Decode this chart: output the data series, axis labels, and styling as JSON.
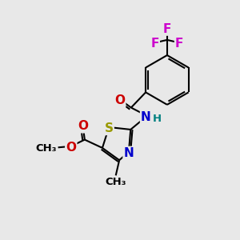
{
  "bg_color": "#e8e8e8",
  "bond_color": "#000000",
  "bond_width": 1.5,
  "atom_colors": {
    "S": "#999900",
    "N": "#0000cc",
    "O": "#cc0000",
    "F": "#cc00cc",
    "C": "#000000",
    "H": "#008080"
  },
  "font_size_atom": 11,
  "font_size_small": 9.5
}
